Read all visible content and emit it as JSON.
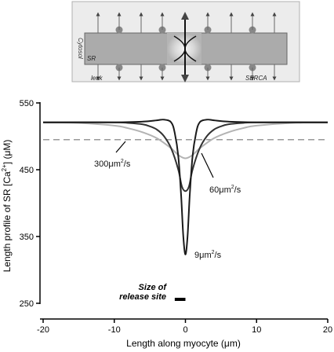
{
  "schematic": {
    "cytosol_label": "Cytosol",
    "sr_label": "SR",
    "leak_label": "leak",
    "serca_label": "SERCA"
  },
  "chart_data": {
    "type": "line",
    "xlabel": "Length along myocyte (μm)",
    "ylabel_parts": [
      "Length profile of SR [Ca",
      "2+",
      "] (μM)"
    ],
    "xlim": [
      -20,
      20
    ],
    "ylim": [
      250,
      550
    ],
    "xticks": [
      -20,
      -10,
      0,
      10,
      20
    ],
    "yticks": [
      250,
      350,
      450,
      550
    ],
    "grid": false,
    "series": [
      {
        "name": "9μm²/s",
        "label_parts": [
          "9μm",
          "2",
          "/s"
        ],
        "color": "#1a1a1a",
        "x": [
          -20,
          -10,
          -6,
          -4,
          -3,
          -2,
          -1.5,
          -1,
          -0.6,
          -0.3,
          0,
          0.3,
          0.6,
          1,
          1.5,
          2,
          3,
          4,
          6,
          10,
          20
        ],
        "y": [
          521,
          521,
          522,
          524,
          525,
          521,
          505,
          470,
          410,
          350,
          323,
          350,
          410,
          470,
          505,
          521,
          525,
          524,
          522,
          521,
          521
        ]
      },
      {
        "name": "60μm²/s",
        "label_parts": [
          "60μm",
          "2",
          "/s"
        ],
        "color": "#333333",
        "x": [
          -20,
          -10,
          -8,
          -6,
          -5,
          -4,
          -3,
          -2,
          -1,
          -0.5,
          0,
          0.5,
          1,
          2,
          3,
          4,
          5,
          6,
          8,
          10,
          20
        ],
        "y": [
          521,
          521,
          520,
          518,
          515,
          510,
          500,
          482,
          450,
          425,
          418,
          425,
          450,
          482,
          500,
          510,
          515,
          518,
          520,
          521,
          521
        ]
      },
      {
        "name": "300μm²/s",
        "label_parts": [
          "300μm",
          "2",
          "/s"
        ],
        "color": "#b3b3b3",
        "x": [
          -20,
          -15,
          -10,
          -8,
          -6,
          -4,
          -2,
          -1,
          0,
          1,
          2,
          4,
          6,
          8,
          10,
          15,
          20
        ],
        "y": [
          521,
          520,
          516,
          512,
          506,
          497,
          482,
          472,
          467,
          472,
          482,
          497,
          506,
          512,
          516,
          520,
          521
        ]
      },
      {
        "name": "reference",
        "color": "#999999",
        "dashed": true,
        "x": [
          -20,
          20
        ],
        "y": [
          495,
          495
        ]
      }
    ],
    "annotations": {
      "release_site_lines": [
        "Size of",
        "release site"
      ],
      "release_site_x": [
        -1.5,
        0
      ]
    }
  }
}
